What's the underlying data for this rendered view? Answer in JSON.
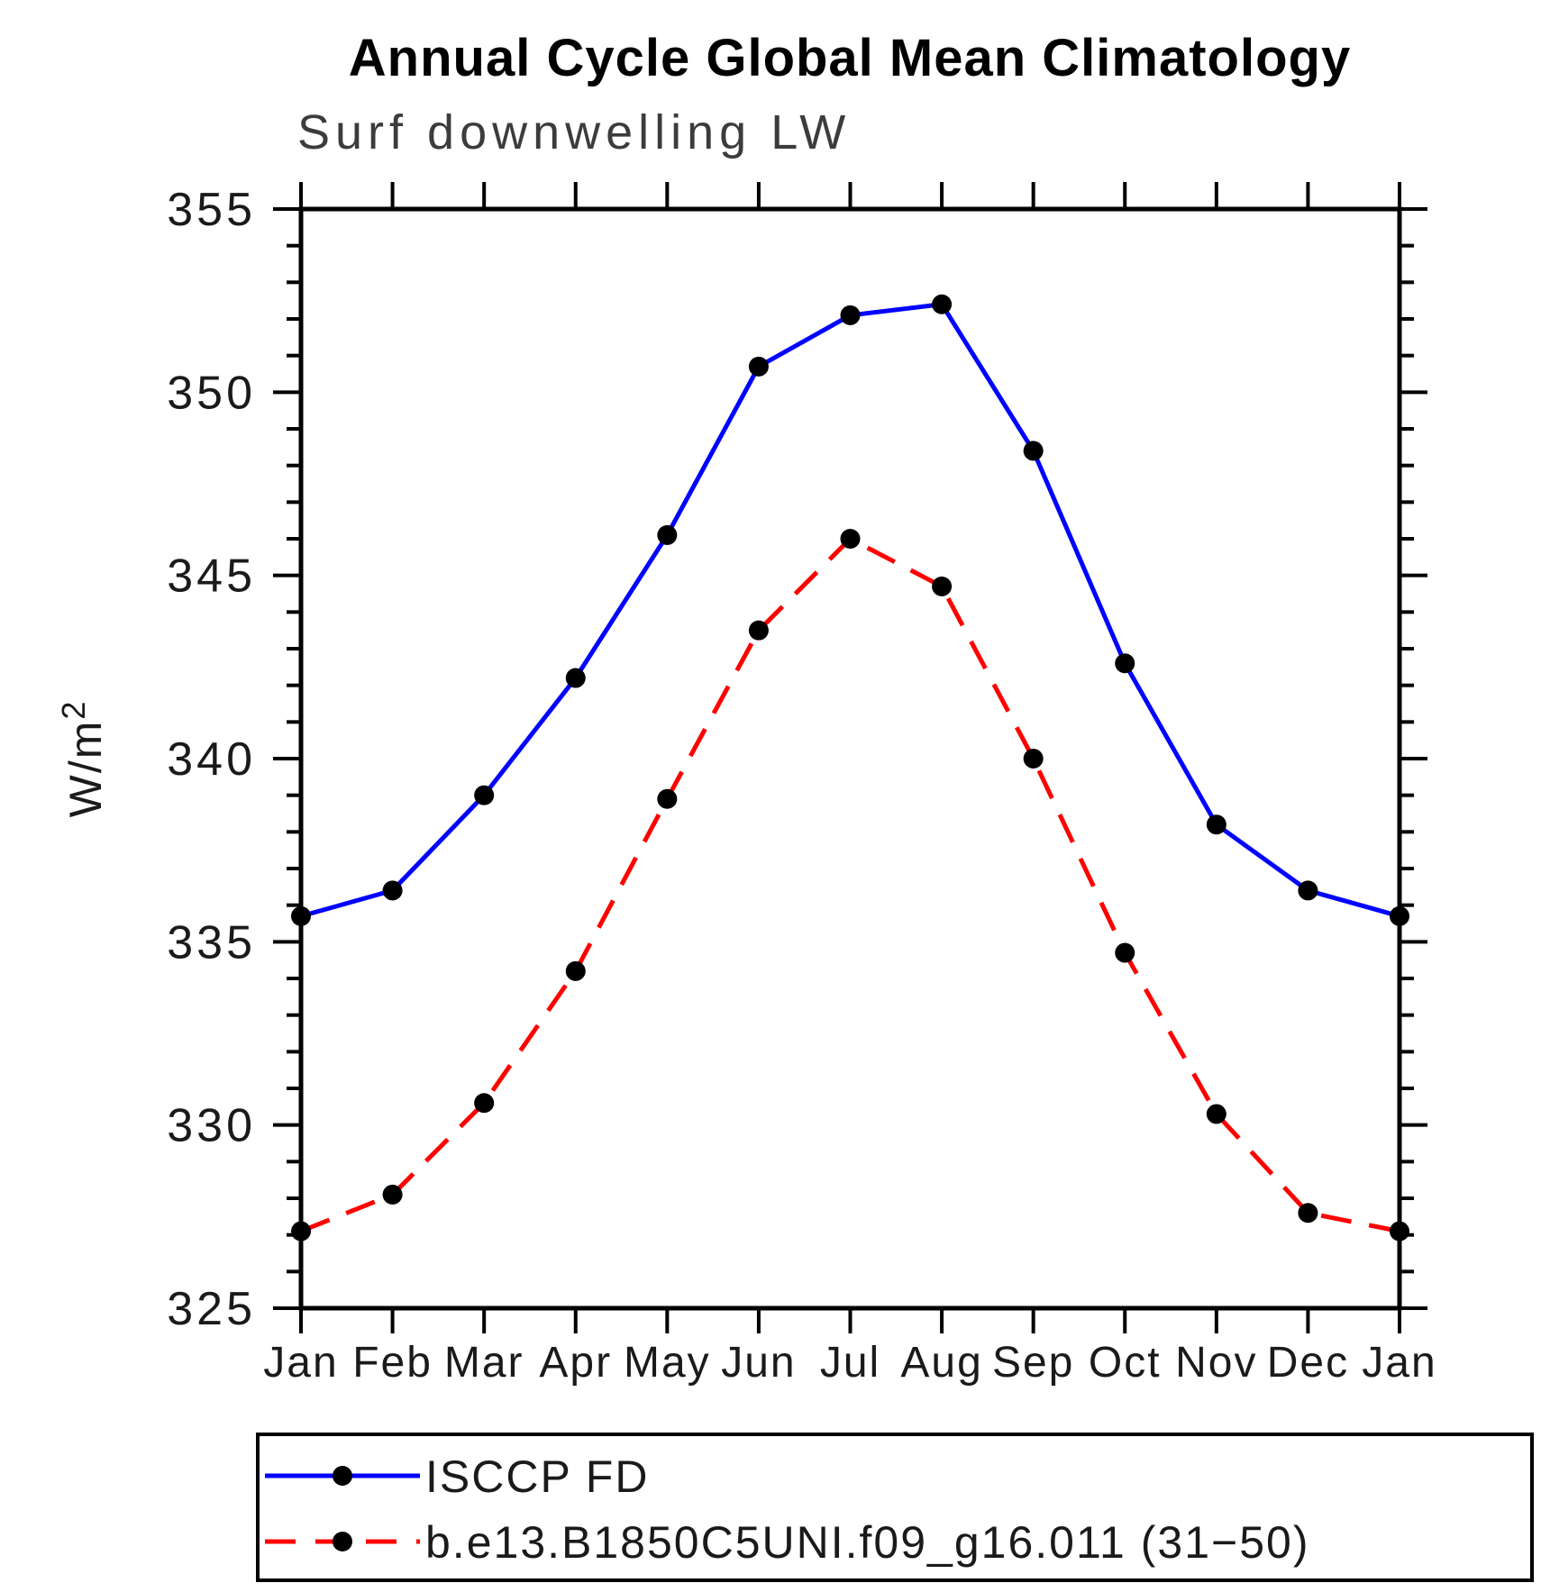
{
  "title": "Annual Cycle Global Mean Climatology",
  "chart_data": {
    "type": "line",
    "subtitle": "Surf downwelling LW",
    "ylabel": "W/m²",
    "ylim": [
      325,
      355
    ],
    "y_major_step": 5,
    "y_minor_step": 1,
    "grid": false,
    "legend_position": "bottom",
    "axis_color": "#000000",
    "categories": [
      "Jan",
      "Feb",
      "Mar",
      "Apr",
      "May",
      "Jun",
      "Jul",
      "Aug",
      "Sep",
      "Oct",
      "Nov",
      "Dec",
      "Jan"
    ],
    "series": [
      {
        "name": "ISCCP FD",
        "color": "#0000ff",
        "line_style": "solid",
        "marker": "filled-circle",
        "marker_color": "#000000",
        "values": [
          335.7,
          336.4,
          339.0,
          342.2,
          346.1,
          350.7,
          352.1,
          352.4,
          348.4,
          342.6,
          338.2,
          336.4,
          335.7
        ]
      },
      {
        "name": "b.e13.B1850C5UNI.f09_g16.011 (31−50)",
        "color": "#ff0000",
        "line_style": "dashed",
        "marker": "filled-circle",
        "marker_color": "#000000",
        "values": [
          327.1,
          328.1,
          330.6,
          334.2,
          338.9,
          343.5,
          346.0,
          344.7,
          340.0,
          334.7,
          330.3,
          327.6,
          327.1
        ]
      }
    ]
  }
}
